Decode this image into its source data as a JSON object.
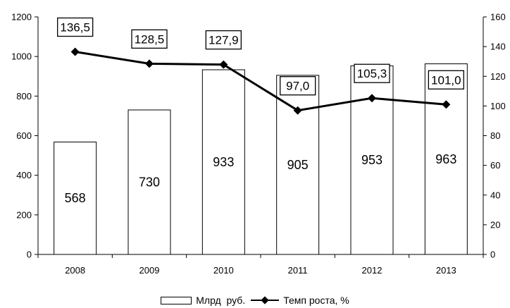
{
  "chart_data": {
    "type": "bar",
    "categories": [
      "2008",
      "2009",
      "2010",
      "2011",
      "2012",
      "2013"
    ],
    "series": [
      {
        "name": "Млрд  руб.",
        "type": "bar",
        "axis": "left",
        "values": [
          568,
          730,
          933,
          905,
          953,
          963
        ],
        "labels": [
          "568",
          "730",
          "933",
          "905",
          "953",
          "963"
        ],
        "color": "#ffffff"
      },
      {
        "name": "Темп роста, %",
        "type": "line",
        "axis": "right",
        "values": [
          136.5,
          128.5,
          127.9,
          97.0,
          105.3,
          101.0
        ],
        "labels": [
          "136,5",
          "128,5",
          "127,9",
          "97,0",
          "105,3",
          "101,0"
        ],
        "color": "#000000",
        "marker": "diamond"
      }
    ],
    "left_axis": {
      "ylim": [
        0,
        1200
      ],
      "ticks": [
        "0",
        "200",
        "400",
        "600",
        "800",
        "1000",
        "1200"
      ]
    },
    "right_axis": {
      "ylim": [
        0,
        160
      ],
      "ticks": [
        "0",
        "20",
        "40",
        "60",
        "80",
        "100",
        "120",
        "140",
        "160"
      ]
    },
    "grid": false,
    "legend_position": "bottom"
  }
}
